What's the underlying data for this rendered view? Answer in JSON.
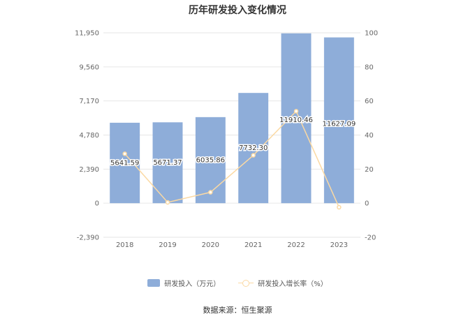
{
  "chart_data": {
    "type": "bar",
    "title": "历年研发投入变化情况",
    "categories": [
      "2018",
      "2019",
      "2020",
      "2021",
      "2022",
      "2023"
    ],
    "series": [
      {
        "name": "研发投入（万元）",
        "type": "bar",
        "axis": "left",
        "values": [
          5641.59,
          5671.37,
          6035.86,
          7732.3,
          11910.46,
          11627.09
        ],
        "labels": [
          "5641.59",
          "5671.37",
          "6035.86",
          "7732.30",
          "11910.46",
          "11627.09"
        ],
        "color": "#8eadd9"
      },
      {
        "name": "研发投入增长率（%）",
        "type": "line",
        "axis": "right",
        "values": [
          29,
          0.5,
          6.4,
          28.1,
          54,
          -2.4
        ],
        "color": "#fbd9a3"
      }
    ],
    "y_left": {
      "ylim": [
        -2390,
        11950
      ],
      "ticks": [
        "11,950",
        "9,560",
        "7,170",
        "4,780",
        "2,390",
        "0",
        "-2,390"
      ]
    },
    "y_right": {
      "ylim": [
        -20,
        100
      ],
      "ticks": [
        "100",
        "80",
        "60",
        "40",
        "20",
        "0",
        "-20"
      ]
    },
    "grid": true,
    "legend_position": "bottom"
  },
  "source": "数据来源：恒生聚源"
}
